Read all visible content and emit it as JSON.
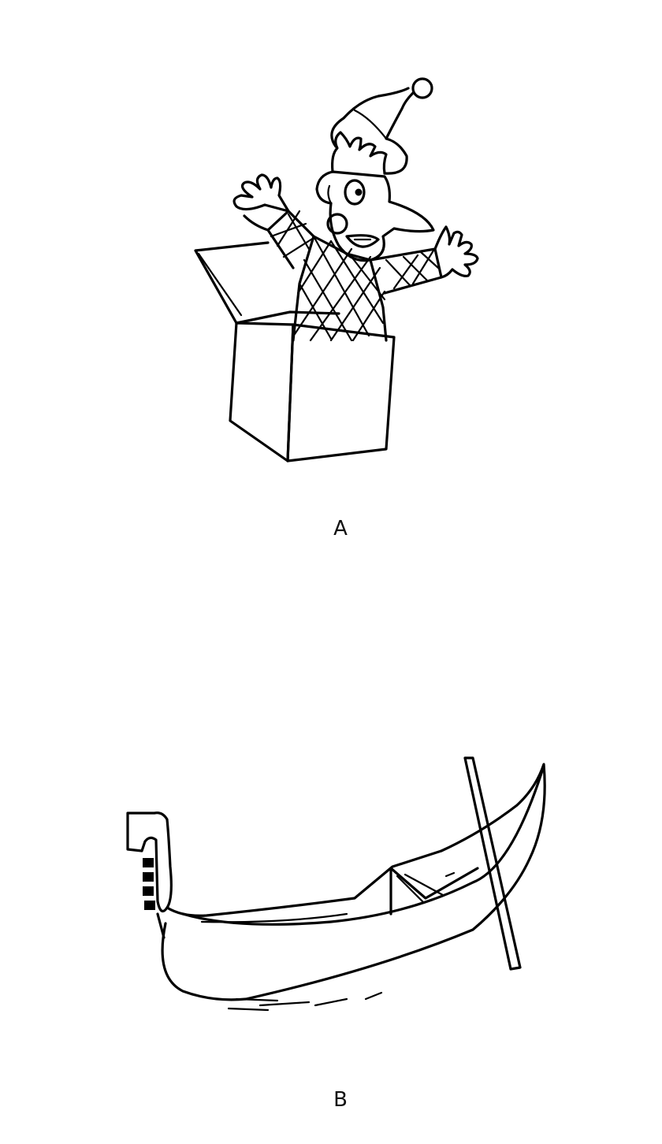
{
  "figures": [
    {
      "label": "A",
      "icon": "jack-in-the-box"
    },
    {
      "label": "B",
      "icon": "gondola"
    }
  ],
  "colors": {
    "ink": "#000000",
    "background": "#ffffff"
  }
}
